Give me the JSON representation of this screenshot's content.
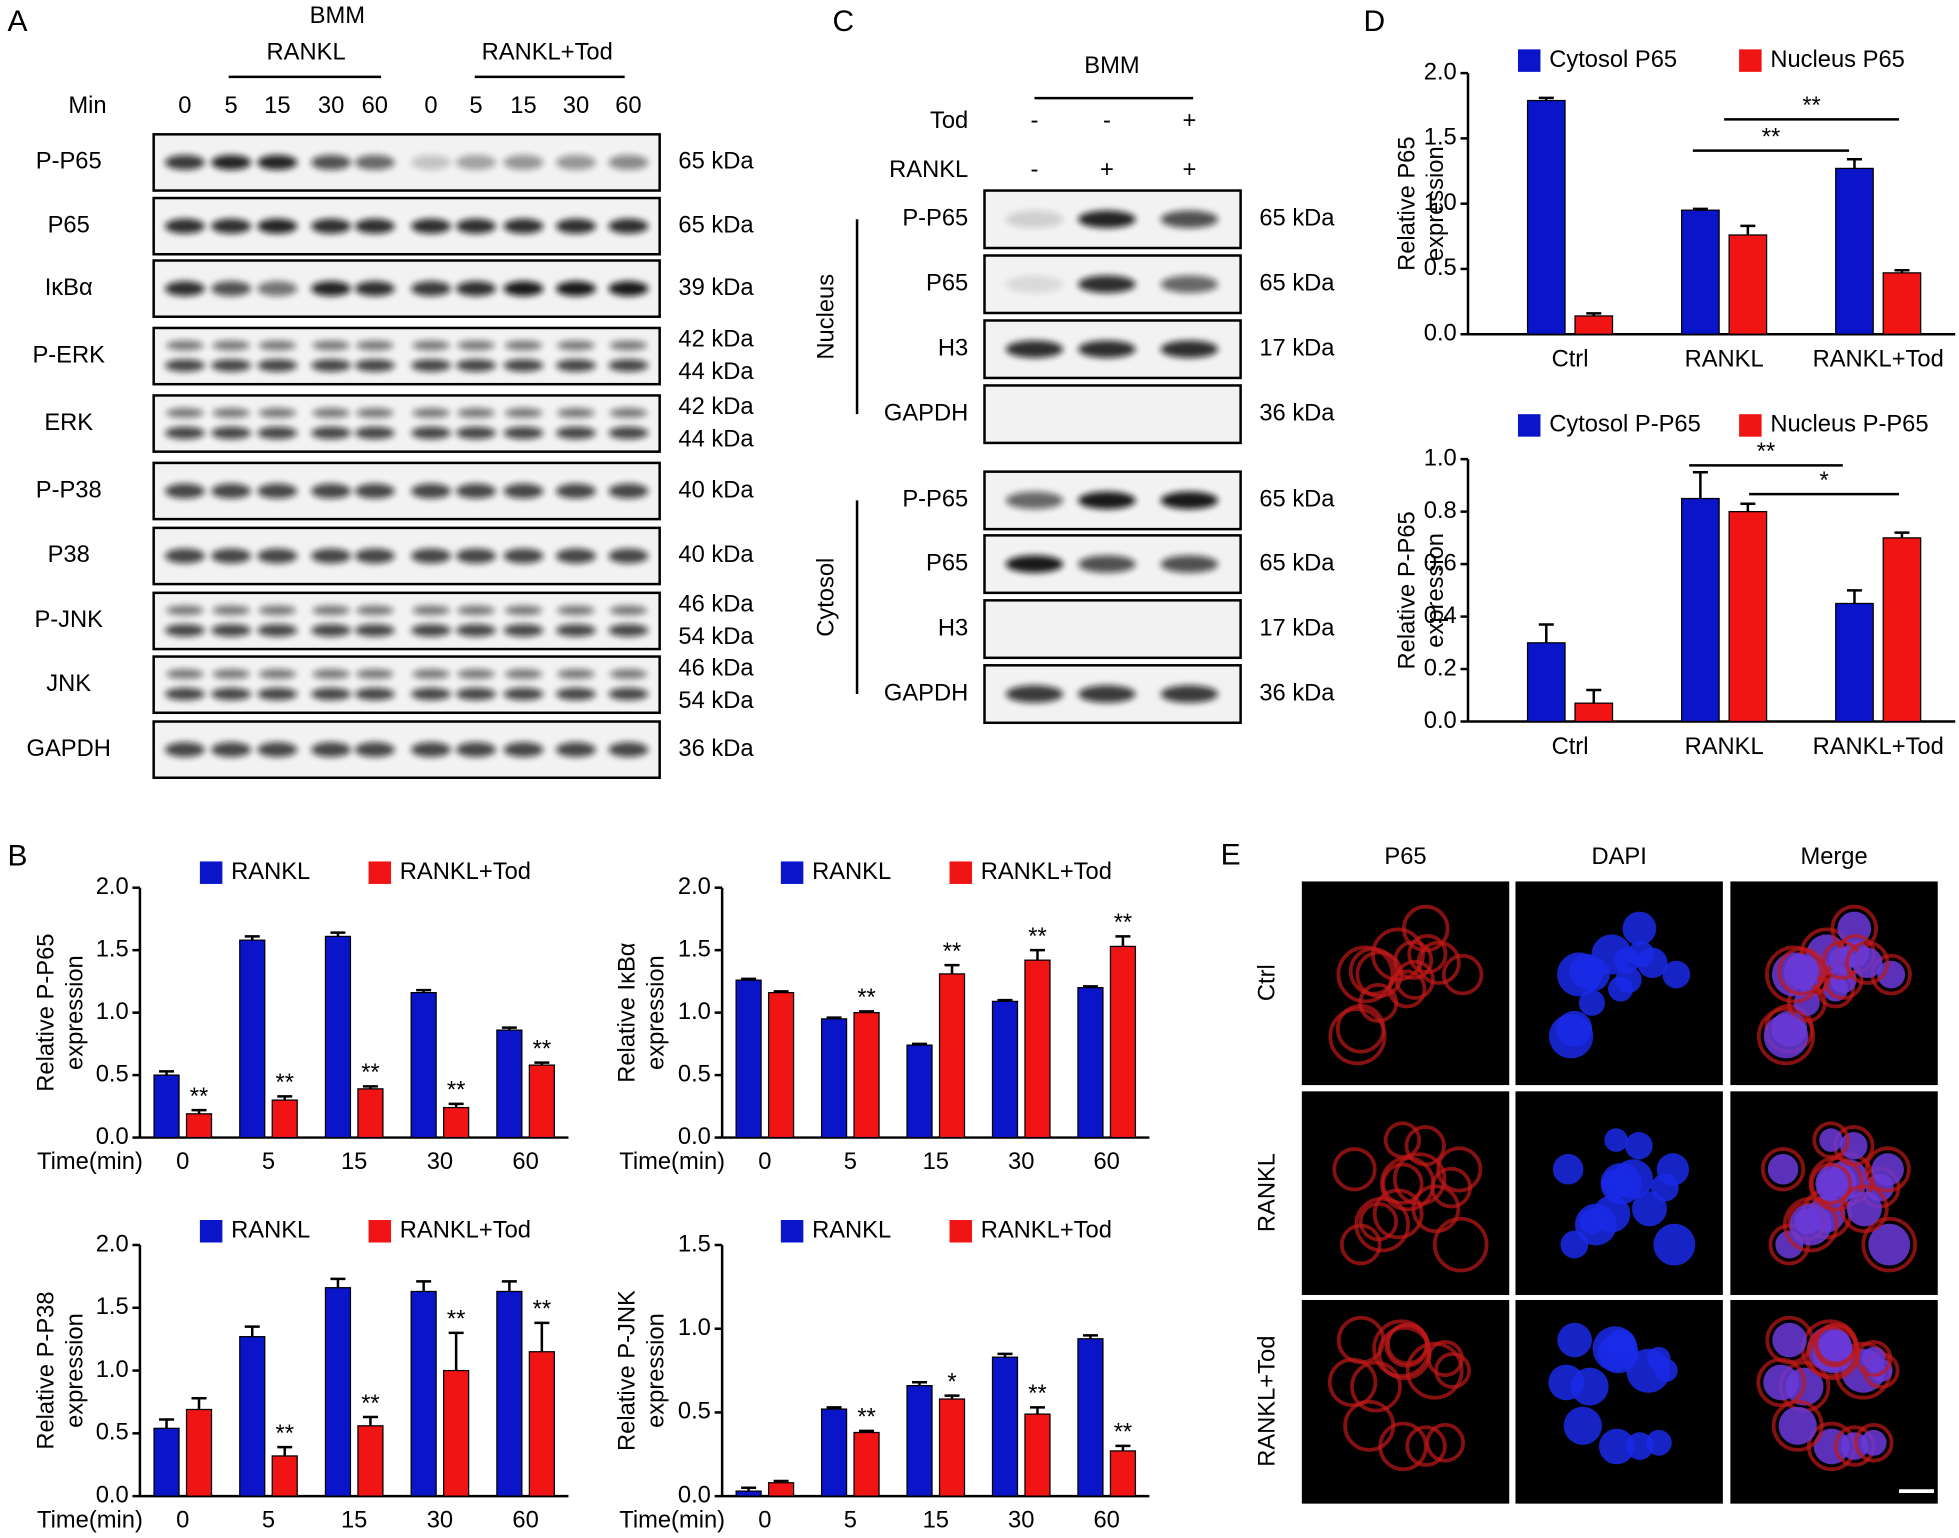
{
  "panel_labels": [
    "A",
    "B",
    "C",
    "D",
    "E"
  ],
  "panel_a": {
    "bmm": "BMM",
    "groups": [
      "RANKL",
      "RANKL+Tod"
    ],
    "min_label": "Min",
    "times": [
      "0",
      "5",
      "15",
      "30",
      "60",
      "0",
      "5",
      "15",
      "30",
      "60"
    ],
    "rows": [
      {
        "label": "P-P65",
        "kda": [
          "65 kDa"
        ]
      },
      {
        "label": "P65",
        "kda": [
          "65 kDa"
        ]
      },
      {
        "label": "IκBα",
        "kda": [
          "39 kDa"
        ]
      },
      {
        "label": "P-ERK",
        "kda": [
          "42 kDa",
          "44 kDa"
        ]
      },
      {
        "label": "ERK",
        "kda": [
          "42 kDa",
          "44 kDa"
        ]
      },
      {
        "label": "P-P38",
        "kda": [
          "40 kDa"
        ]
      },
      {
        "label": "P38",
        "kda": [
          "40 kDa"
        ]
      },
      {
        "label": "P-JNK",
        "kda": [
          "46 kDa",
          "54 kDa"
        ]
      },
      {
        "label": "JNK",
        "kda": [
          "46 kDa",
          "54 kDa"
        ]
      },
      {
        "label": "GAPDH",
        "kda": [
          "36 kDa"
        ]
      }
    ]
  },
  "panel_c": {
    "bmm": "BMM",
    "treatments": [
      {
        "label": "Tod",
        "signs": [
          "-",
          "-",
          "+"
        ]
      },
      {
        "label": "RANKL",
        "signs": [
          "-",
          "+",
          "+"
        ]
      }
    ],
    "groups": [
      {
        "label": "Nucleus",
        "rows": [
          {
            "label": "P-P65",
            "kda": "65 kDa"
          },
          {
            "label": "P65",
            "kda": "65 kDa"
          },
          {
            "label": "H3",
            "kda": "17 kDa"
          },
          {
            "label": "GAPDH",
            "kda": "36 kDa"
          }
        ]
      },
      {
        "label": "Cytosol",
        "rows": [
          {
            "label": "P-P65",
            "kda": "65 kDa"
          },
          {
            "label": "P65",
            "kda": "65 kDa"
          },
          {
            "label": "H3",
            "kda": "17 kDa"
          },
          {
            "label": "GAPDH",
            "kda": "36 kDa"
          }
        ]
      }
    ]
  },
  "panel_e": {
    "columns": [
      "P65",
      "DAPI",
      "Merge"
    ],
    "rows": [
      "Ctrl",
      "RANKL",
      "RANKL+Tod"
    ]
  },
  "chart_data": [
    {
      "type": "bar",
      "y_label": [
        "Relative P65",
        "expression"
      ],
      "categories": [
        "Ctrl",
        "RANKL",
        "RANKL+Tod"
      ],
      "ylim": [
        0,
        2
      ],
      "yticks": [
        {
          "value": 0,
          "label": "0.0"
        },
        {
          "value": 0.5,
          "label": "0.5"
        },
        {
          "value": 1,
          "label": "1.0"
        },
        {
          "value": 1.5,
          "label": "1.5"
        },
        {
          "value": 2,
          "label": "2.0"
        }
      ],
      "series": [
        {
          "name": "Cytosol P65",
          "color": "#0a14c8",
          "values": [
            1.79,
            0.95,
            1.27
          ],
          "errors": [
            0.02,
            0.01,
            0.07
          ]
        },
        {
          "name": "Nucleus P65",
          "color": "#f01414",
          "values": [
            0.14,
            0.76,
            0.47
          ],
          "errors": [
            0.02,
            0.07,
            0.02
          ]
        }
      ],
      "annotations": [
        {
          "text": "**"
        },
        {
          "text": "**"
        }
      ]
    },
    {
      "type": "bar",
      "y_label": [
        "Relative P-P65",
        "expression"
      ],
      "categories": [
        "Ctrl",
        "RANKL",
        "RANKL+Tod"
      ],
      "ylim": [
        0,
        1
      ],
      "yticks": [
        {
          "value": 0,
          "label": "0.0"
        },
        {
          "value": 0.2,
          "label": "0.2"
        },
        {
          "value": 0.4,
          "label": "0.4"
        },
        {
          "value": 0.6,
          "label": "0.6"
        },
        {
          "value": 0.8,
          "label": "0.8"
        },
        {
          "value": 1,
          "label": "1.0"
        }
      ],
      "series": [
        {
          "name": "Cytosol P-P65",
          "color": "#0a14c8",
          "values": [
            0.3,
            0.85,
            0.45
          ],
          "errors": [
            0.07,
            0.1,
            0.05
          ]
        },
        {
          "name": "Nucleus P-P65",
          "color": "#f01414",
          "values": [
            0.07,
            0.8,
            0.7
          ],
          "errors": [
            0.05,
            0.03,
            0.02
          ]
        }
      ],
      "annotations": [
        {
          "text": "**"
        },
        {
          "text": "*"
        }
      ]
    },
    {
      "type": "bar",
      "x_label": "Time(min)",
      "y_label": [
        "Relative P-P65",
        "expression"
      ],
      "categories": [
        "0",
        "5",
        "15",
        "30",
        "60"
      ],
      "ylim": [
        0,
        2
      ],
      "yticks": [
        {
          "value": 0,
          "label": "0.0"
        },
        {
          "value": 0.5,
          "label": "0.5"
        },
        {
          "value": 1,
          "label": "1.0"
        },
        {
          "value": 1.5,
          "label": "1.5"
        },
        {
          "value": 2,
          "label": "2.0"
        }
      ],
      "series": [
        {
          "name": "RANKL",
          "color": "#0a14c8",
          "values": [
            0.5,
            1.58,
            1.61,
            1.16,
            0.86
          ],
          "errors": [
            0.03,
            0.03,
            0.03,
            0.02,
            0.02
          ]
        },
        {
          "name": "RANKL+Tod",
          "color": "#f01414",
          "values": [
            0.19,
            0.3,
            0.39,
            0.24,
            0.58
          ],
          "errors": [
            0.03,
            0.03,
            0.02,
            0.03,
            0.02
          ],
          "significance": [
            "**",
            "**",
            "**",
            "**",
            "**"
          ]
        }
      ]
    },
    {
      "type": "bar",
      "x_label": "Time(min)",
      "y_label": [
        "Relative IκBα",
        "expression"
      ],
      "categories": [
        "0",
        "5",
        "15",
        "30",
        "60"
      ],
      "ylim": [
        0,
        2
      ],
      "yticks": [
        {
          "value": 0,
          "label": "0.0"
        },
        {
          "value": 0.5,
          "label": "0.5"
        },
        {
          "value": 1,
          "label": "1.0"
        },
        {
          "value": 1.5,
          "label": "1.5"
        },
        {
          "value": 2,
          "label": "2.0"
        }
      ],
      "series": [
        {
          "name": "RANKL",
          "color": "#0a14c8",
          "values": [
            1.26,
            0.95,
            0.74,
            1.09,
            1.2
          ],
          "errors": [
            0.01,
            0.01,
            0.01,
            0.01,
            0.01
          ]
        },
        {
          "name": "RANKL+Tod",
          "color": "#f01414",
          "values": [
            1.16,
            1.0,
            1.31,
            1.42,
            1.53
          ],
          "errors": [
            0.01,
            0.01,
            0.07,
            0.08,
            0.08
          ],
          "significance": [
            null,
            "**",
            "**",
            "**",
            "**"
          ]
        }
      ]
    },
    {
      "type": "bar",
      "x_label": "Time(min)",
      "y_label": [
        "Relative P-P38",
        "expression"
      ],
      "categories": [
        "0",
        "5",
        "15",
        "30",
        "60"
      ],
      "ylim": [
        0,
        2
      ],
      "yticks": [
        {
          "value": 0,
          "label": "0.0"
        },
        {
          "value": 0.5,
          "label": "0.5"
        },
        {
          "value": 1,
          "label": "1.0"
        },
        {
          "value": 1.5,
          "label": "1.5"
        },
        {
          "value": 2,
          "label": "2.0"
        }
      ],
      "series": [
        {
          "name": "RANKL",
          "color": "#0a14c8",
          "values": [
            0.54,
            1.27,
            1.66,
            1.63,
            1.63
          ],
          "errors": [
            0.07,
            0.08,
            0.07,
            0.08,
            0.08
          ]
        },
        {
          "name": "RANKL+Tod",
          "color": "#f01414",
          "values": [
            0.69,
            0.32,
            0.56,
            1.0,
            1.15
          ],
          "errors": [
            0.09,
            0.07,
            0.07,
            0.3,
            0.23
          ],
          "significance": [
            null,
            "**",
            "**",
            "**",
            "**"
          ]
        }
      ]
    },
    {
      "type": "bar",
      "x_label": "Time(min)",
      "y_label": [
        "Relative P-JNK",
        "expression"
      ],
      "categories": [
        "0",
        "5",
        "15",
        "30",
        "60"
      ],
      "ylim": [
        0,
        1.5
      ],
      "yticks": [
        {
          "value": 0,
          "label": "0.0"
        },
        {
          "value": 0.5,
          "label": "0.5"
        },
        {
          "value": 1,
          "label": "1.0"
        },
        {
          "value": 1.5,
          "label": "1.5"
        }
      ],
      "series": [
        {
          "name": "RANKL",
          "color": "#0a14c8",
          "values": [
            0.03,
            0.52,
            0.66,
            0.83,
            0.94
          ],
          "errors": [
            0.02,
            0.01,
            0.02,
            0.02,
            0.02
          ]
        },
        {
          "name": "RANKL+Tod",
          "color": "#f01414",
          "values": [
            0.08,
            0.38,
            0.58,
            0.49,
            0.27
          ],
          "errors": [
            0.01,
            0.01,
            0.02,
            0.04,
            0.03
          ],
          "significance": [
            null,
            "**",
            "*",
            "**",
            "**"
          ]
        }
      ]
    }
  ]
}
